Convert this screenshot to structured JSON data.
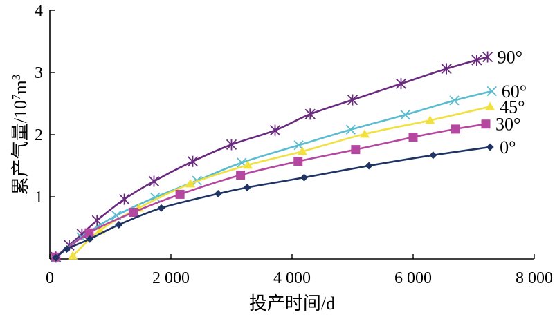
{
  "chart_data": {
    "type": "line",
    "title": "",
    "xlabel": "投产时间/d",
    "ylabel_prefix": "累产气量/10",
    "ylabel_sup1": "7",
    "ylabel_mid": "m",
    "ylabel_sup2": "3",
    "xlim": [
      0,
      8000
    ],
    "ylim": [
      0,
      4
    ],
    "xticks": [
      0,
      2000,
      4000,
      6000,
      8000
    ],
    "xtick_labels": [
      "0",
      "2 000",
      "4 000",
      "6 000",
      "8 000"
    ],
    "yticks": [
      1,
      2,
      3,
      4
    ],
    "ytick_labels": [
      "1",
      "2",
      "3",
      "4"
    ],
    "grid": false,
    "legend": "labels at line ends",
    "series": [
      {
        "name": "90°",
        "color": "#6a2a7e",
        "marker": "asterisk",
        "x": [
          100,
          320,
          530,
          780,
          1230,
          1720,
          2360,
          3000,
          3720,
          4300,
          5000,
          5800,
          6550,
          7050,
          7230
        ],
        "y": [
          0.03,
          0.22,
          0.4,
          0.62,
          0.96,
          1.25,
          1.57,
          1.84,
          2.07,
          2.33,
          2.56,
          2.82,
          3.06,
          3.2,
          3.25
        ]
      },
      {
        "name": "60°",
        "color": "#59bcd0",
        "marker": "x",
        "x": [
          100,
          520,
          1100,
          1740,
          2430,
          3170,
          4110,
          4970,
          5870,
          6680,
          7300
        ],
        "y": [
          0.02,
          0.35,
          0.7,
          0.99,
          1.26,
          1.55,
          1.83,
          2.08,
          2.32,
          2.55,
          2.7
        ]
      },
      {
        "name": "45°",
        "color": "#f0e040",
        "marker": "triangle",
        "x": [
          380,
          830,
          1470,
          2320,
          3270,
          4170,
          5200,
          6280,
          7270
        ],
        "y": [
          0.05,
          0.46,
          0.82,
          1.21,
          1.51,
          1.73,
          2.01,
          2.23,
          2.45
        ]
      },
      {
        "name": "30°",
        "color": "#b4479f",
        "marker": "square",
        "x": [
          100,
          650,
          1380,
          2150,
          3150,
          4100,
          5050,
          6000,
          6700,
          7200
        ],
        "y": [
          0.03,
          0.42,
          0.75,
          1.04,
          1.35,
          1.57,
          1.76,
          1.96,
          2.09,
          2.17
        ]
      },
      {
        "name": "0°",
        "color": "#1f3463",
        "marker": "diamond",
        "x": [
          100,
          280,
          660,
          1140,
          1840,
          2780,
          3260,
          4200,
          5270,
          6330,
          7270
        ],
        "y": [
          0.02,
          0.16,
          0.32,
          0.55,
          0.82,
          1.05,
          1.15,
          1.31,
          1.5,
          1.67,
          1.8
        ]
      }
    ]
  }
}
